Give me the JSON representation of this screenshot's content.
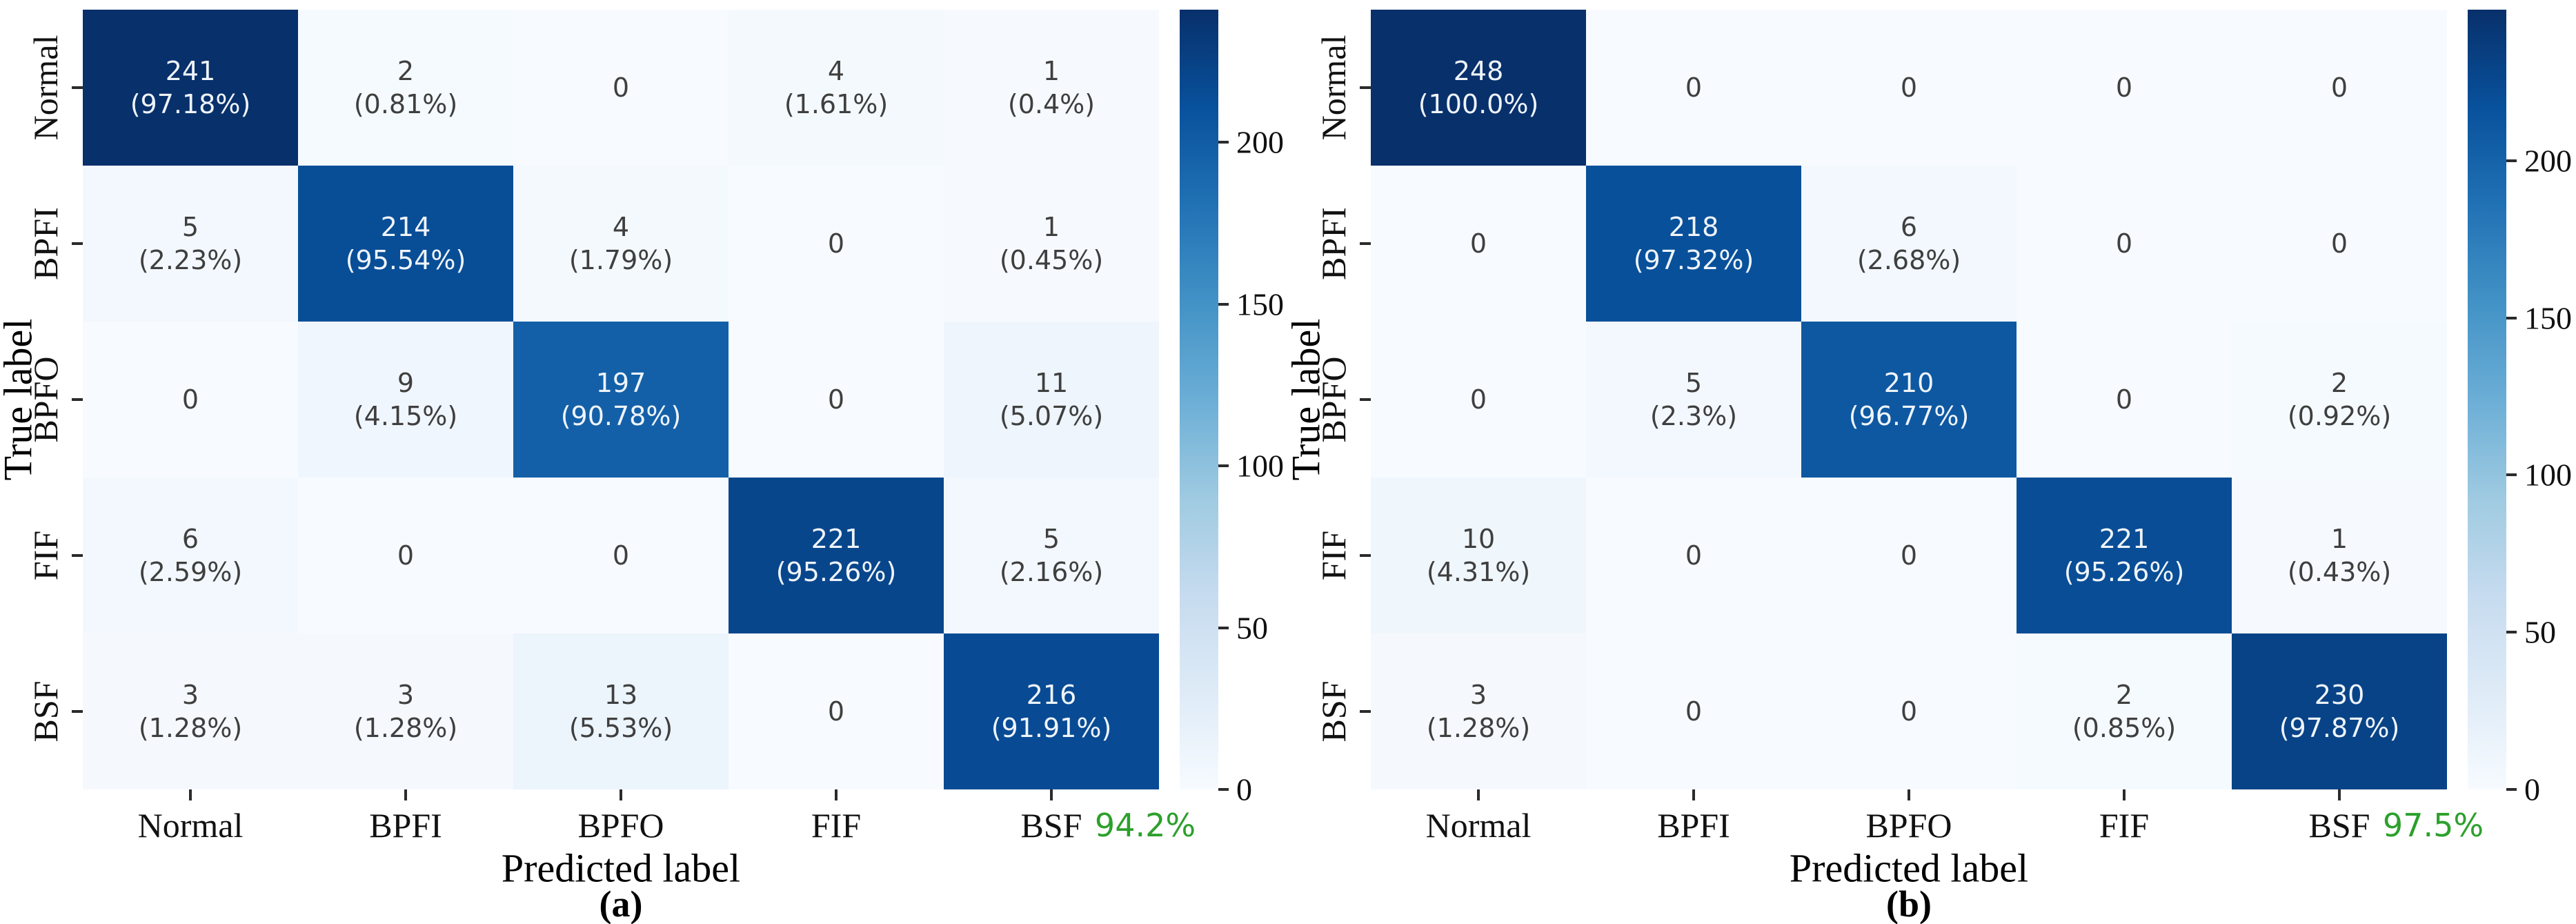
{
  "figure": {
    "background": "#ffffff",
    "accuracy_color": "#2ca02c",
    "colormap_name": "Blues",
    "colormap_stops": [
      "#f7fbff",
      "#deebf7",
      "#c6dbef",
      "#9ecae1",
      "#6baed6",
      "#4292c6",
      "#2171b5",
      "#08519c",
      "#08306b"
    ],
    "cell_text_light": "#eff4fa",
    "cell_text_dark": "#3f3f3f"
  },
  "chart_data": [
    {
      "type": "heatmap",
      "subplot_label": "(a)",
      "xlabel": "Predicted label",
      "ylabel": "True label",
      "categories": [
        "Normal",
        "BPFI",
        "BPFO",
        "FIF",
        "BSF"
      ],
      "matrix": [
        [
          241,
          2,
          0,
          4,
          1
        ],
        [
          5,
          214,
          4,
          0,
          1
        ],
        [
          0,
          9,
          197,
          0,
          11
        ],
        [
          6,
          0,
          0,
          221,
          5
        ],
        [
          3,
          3,
          13,
          0,
          216
        ]
      ],
      "percent": [
        [
          "97.18%",
          "0.81%",
          "",
          "1.61%",
          "0.4%"
        ],
        [
          "2.23%",
          "95.54%",
          "1.79%",
          "",
          "0.45%"
        ],
        [
          "",
          "4.15%",
          "90.78%",
          "",
          "5.07%"
        ],
        [
          "2.59%",
          "",
          "",
          "95.26%",
          "2.16%"
        ],
        [
          "1.28%",
          "1.28%",
          "5.53%",
          "",
          "91.91%"
        ]
      ],
      "vmin": 0,
      "vmax": 241,
      "colorbar_ticks": [
        0,
        50,
        100,
        150,
        200
      ],
      "accuracy": "94.2%"
    },
    {
      "type": "heatmap",
      "subplot_label": "(b)",
      "xlabel": "Predicted label",
      "ylabel": "True label",
      "categories": [
        "Normal",
        "BPFI",
        "BPFO",
        "FIF",
        "BSF"
      ],
      "matrix": [
        [
          248,
          0,
          0,
          0,
          0
        ],
        [
          0,
          218,
          6,
          0,
          0
        ],
        [
          0,
          5,
          210,
          0,
          2
        ],
        [
          10,
          0,
          0,
          221,
          1
        ],
        [
          3,
          0,
          0,
          2,
          230
        ]
      ],
      "percent": [
        [
          "100.0%",
          "",
          "",
          "",
          ""
        ],
        [
          "",
          "97.32%",
          "2.68%",
          "",
          ""
        ],
        [
          "",
          "2.3%",
          "96.77%",
          "",
          "0.92%"
        ],
        [
          "4.31%",
          "",
          "",
          "95.26%",
          "0.43%"
        ],
        [
          "1.28%",
          "",
          "",
          "0.85%",
          "97.87%"
        ]
      ],
      "vmin": 0,
      "vmax": 248,
      "colorbar_ticks": [
        0,
        50,
        100,
        150,
        200
      ],
      "accuracy": "97.5%"
    }
  ]
}
